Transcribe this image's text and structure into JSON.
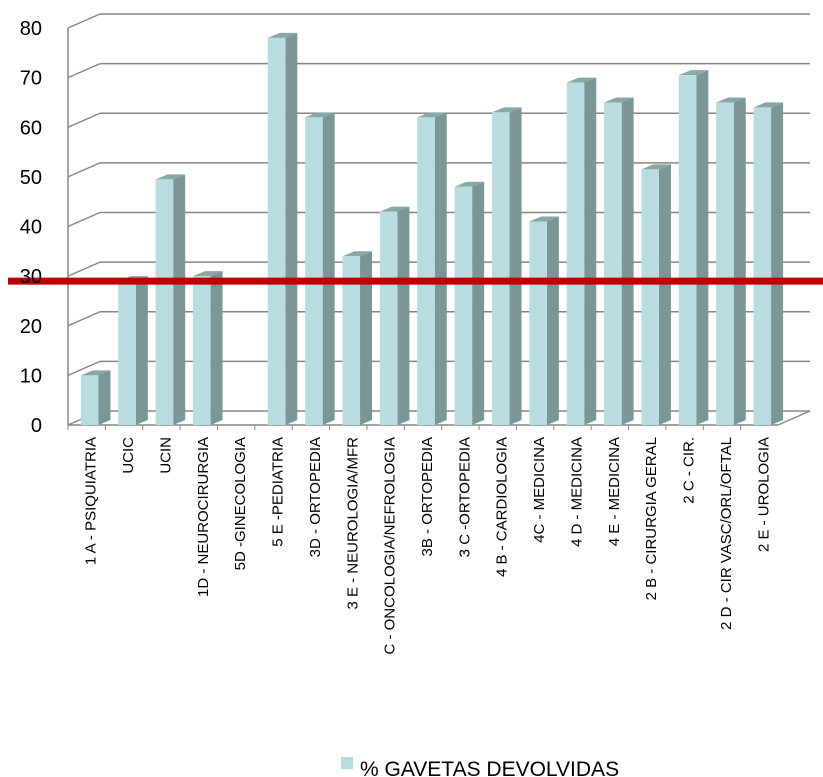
{
  "chart_data": {
    "type": "bar",
    "title": "",
    "xlabel": "",
    "ylabel": "",
    "ylim": [
      0,
      80
    ],
    "yticks": [
      0,
      10,
      20,
      30,
      40,
      50,
      60,
      70,
      80
    ],
    "categories": [
      "1 A - PSIQUIATRIA",
      "UCIC",
      "UCIN",
      "1D - NEUROCIRURGIA",
      "5D -GINECOLOGIA",
      "5 E -PEDIATRIA",
      "3D - ORTOPEDIA",
      "3 E - NEUROLOGIA/MFR",
      "C - ONCOLOGIA/NEFROLOGIA",
      "3B - ORTOPEDIA",
      "3 C -ORTOPEDIA",
      "4 B - CARDIOLOGIA",
      "4C - MEDICINA",
      "4 D - MEDICINA",
      "4 E - MEDICINA",
      "2 B - CIRURGIA GERAL",
      "2 C - CIR.",
      "2 D - CIR VASC/ORL/OFTAL",
      "2 E - UROLOGIA"
    ],
    "series": [
      {
        "name": "% GAVETAS DEVOLVIDAS",
        "values": [
          10,
          29,
          49.5,
          30,
          0,
          78,
          62,
          34,
          43,
          62,
          48,
          63,
          41,
          69,
          65,
          51.5,
          70.5,
          65,
          64
        ]
      }
    ],
    "reference_line": {
      "value": 29,
      "color": "#c00000"
    },
    "grid": true,
    "legend": "bottom",
    "colors": {
      "bar_front": "#b7dde1",
      "bar_side": "#7a9697",
      "bar_top": "#8aa7a8",
      "grid": "#868686"
    }
  }
}
